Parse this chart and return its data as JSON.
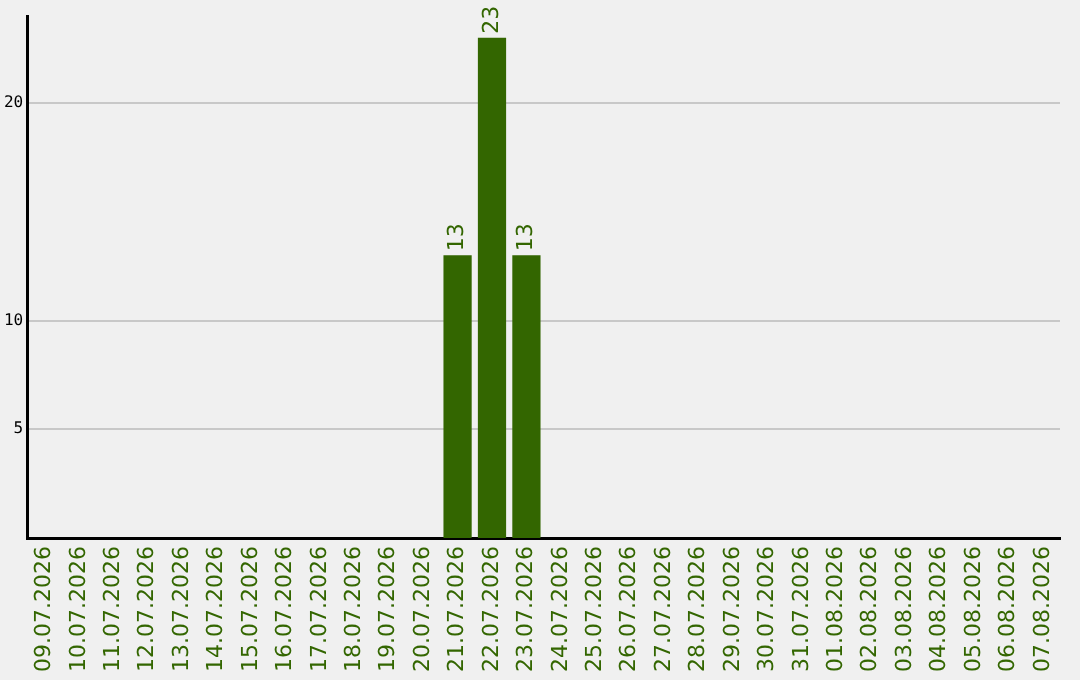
{
  "chart_data": {
    "type": "bar",
    "categories": [
      "09.07.2026",
      "10.07.2026",
      "11.07.2026",
      "12.07.2026",
      "13.07.2026",
      "14.07.2026",
      "15.07.2026",
      "16.07.2026",
      "17.07.2026",
      "18.07.2026",
      "19.07.2026",
      "20.07.2026",
      "21.07.2026",
      "22.07.2026",
      "23.07.2026",
      "24.07.2026",
      "25.07.2026",
      "26.07.2026",
      "27.07.2026",
      "28.07.2026",
      "29.07.2026",
      "30.07.2026",
      "31.07.2026",
      "01.08.2026",
      "02.08.2026",
      "03.08.2026",
      "04.08.2026",
      "05.08.2026",
      "06.08.2026",
      "07.08.2026"
    ],
    "values": [
      0,
      0,
      0,
      0,
      0,
      0,
      0,
      0,
      0,
      0,
      0,
      0,
      13,
      23,
      13,
      0,
      0,
      0,
      0,
      0,
      0,
      0,
      0,
      0,
      0,
      0,
      0,
      0,
      0,
      0
    ],
    "value_labels": [
      null,
      null,
      null,
      null,
      null,
      null,
      null,
      null,
      null,
      null,
      null,
      null,
      "13",
      "23",
      "13",
      null,
      null,
      null,
      null,
      null,
      null,
      null,
      null,
      null,
      null,
      null,
      null,
      null,
      null,
      null
    ],
    "color": "#336600",
    "ylim": [
      0,
      24
    ],
    "yticks": [
      5,
      10,
      20
    ],
    "grid": "y",
    "legend": false
  }
}
